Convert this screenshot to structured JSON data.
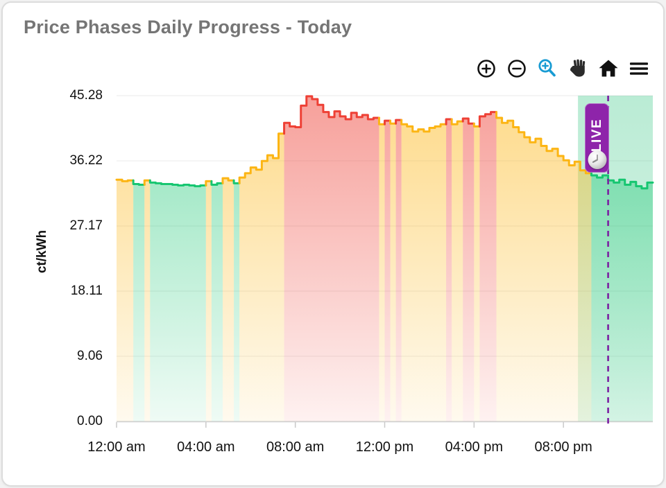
{
  "card": {
    "title": "Price Phases Daily Progress - Today"
  },
  "toolbar": {
    "icons": [
      {
        "name": "zoom-in-icon",
        "color": "#111111"
      },
      {
        "name": "zoom-out-icon",
        "color": "#111111"
      },
      {
        "name": "box-zoom-icon",
        "color": "#189bd3"
      },
      {
        "name": "pan-hand-icon",
        "color": "#2b2b2b"
      },
      {
        "name": "home-icon",
        "color": "#111111"
      },
      {
        "name": "menu-icon",
        "color": "#111111"
      }
    ]
  },
  "chart_data": {
    "type": "area",
    "subtype": "stepped-phase-area",
    "title": "Price Phases Daily Progress - Today",
    "xlabel": "",
    "ylabel": "ct/kWh",
    "unit": "ct/kWh",
    "ylim": [
      0,
      45.28
    ],
    "xlim_hours": [
      0,
      24
    ],
    "grid": "horizontal",
    "y_ticks": [
      "45.28",
      "36.22",
      "27.17",
      "18.11",
      "9.06",
      "0.00"
    ],
    "y_tick_values": [
      45.28,
      36.22,
      27.17,
      18.11,
      9.06,
      0
    ],
    "x_ticks": [
      {
        "label": "12:00 am",
        "hour": 0
      },
      {
        "label": "04:00 am",
        "hour": 4
      },
      {
        "label": "08:00 am",
        "hour": 8
      },
      {
        "label": "12:00 pm",
        "hour": 12
      },
      {
        "label": "04:00 pm",
        "hour": 16
      },
      {
        "label": "08:00 pm",
        "hour": 20
      }
    ],
    "step_minutes": 15,
    "phase_colors": {
      "g": "#17c671",
      "y": "#fcb514",
      "r": "#ee4035"
    },
    "phase_names": {
      "g": "green-cheap",
      "y": "yellow-medium",
      "r": "red-expensive"
    },
    "values": [
      33.6,
      33.4,
      33.5,
      33.0,
      32.9,
      33.5,
      33.2,
      33.1,
      33.0,
      33.0,
      32.9,
      32.8,
      32.9,
      32.8,
      32.7,
      32.8,
      33.4,
      32.9,
      33.1,
      33.8,
      33.5,
      33.1,
      33.9,
      34.5,
      35.3,
      35.0,
      36.2,
      37.0,
      36.6,
      40.0,
      41.5,
      41.0,
      40.9,
      43.9,
      45.2,
      44.8,
      44.0,
      43.0,
      42.3,
      43.1,
      42.4,
      42.0,
      42.9,
      42.3,
      42.6,
      42.0,
      42.2,
      41.3,
      41.8,
      41.4,
      41.9,
      41.3,
      41.0,
      40.3,
      40.6,
      40.3,
      40.8,
      41.0,
      41.3,
      42.0,
      41.3,
      41.7,
      42.1,
      41.4,
      41.0,
      42.4,
      42.7,
      43.0,
      42.2,
      41.5,
      41.8,
      40.9,
      40.2,
      39.5,
      38.8,
      39.3,
      38.3,
      37.6,
      37.9,
      36.9,
      36.3,
      35.6,
      36.1,
      34.9,
      34.5,
      34.2,
      33.9,
      34.2,
      33.5,
      33.2,
      33.6,
      32.9,
      33.3,
      32.7,
      32.4,
      33.2
    ],
    "phases": "yyyggyggggggggggyggyygyyyyyyyyrrrrrrrrrrrrrrrrryryryyyyyyyyryyrryrrryyyyyyyyyyyyyyyyyggggggggggg",
    "live_marker": {
      "label": "LIVE",
      "hour": 22.0,
      "badge_color": "#8e24aa",
      "line_color": "#7b1fa2"
    },
    "highlight_band": {
      "from_hour": 20.65,
      "to_hour": 24,
      "color": "#2ec47e"
    }
  }
}
